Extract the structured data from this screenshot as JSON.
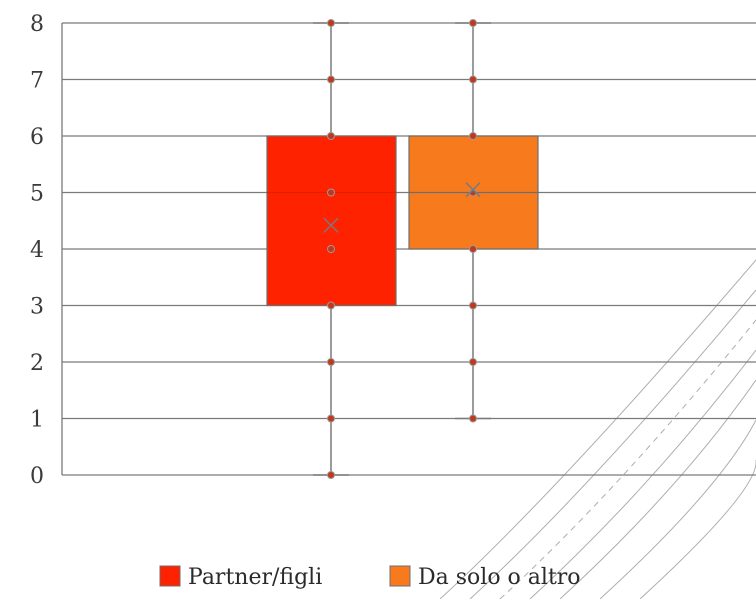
{
  "chart_data": {
    "type": "box",
    "ylim": [
      0,
      8
    ],
    "y_ticks": [
      "0",
      "1",
      "2",
      "3",
      "4",
      "5",
      "6",
      "7",
      "8"
    ],
    "grid": true,
    "legend_position": "bottom",
    "series": [
      {
        "name": "Partner/figli",
        "color": "#ff2200",
        "min": 0,
        "q1": 3,
        "median": 5,
        "q3": 6,
        "max": 8,
        "mean": 4.42,
        "points": [
          0,
          1,
          2,
          3,
          4,
          5,
          6,
          7,
          8
        ]
      },
      {
        "name": "Da solo o altro",
        "color": "#f77b1c",
        "min": 1,
        "q1": 4,
        "median": 5,
        "q3": 6,
        "max": 8,
        "mean": 5.05,
        "points": [
          1,
          2,
          3,
          4,
          5,
          6,
          7,
          8
        ]
      }
    ]
  }
}
